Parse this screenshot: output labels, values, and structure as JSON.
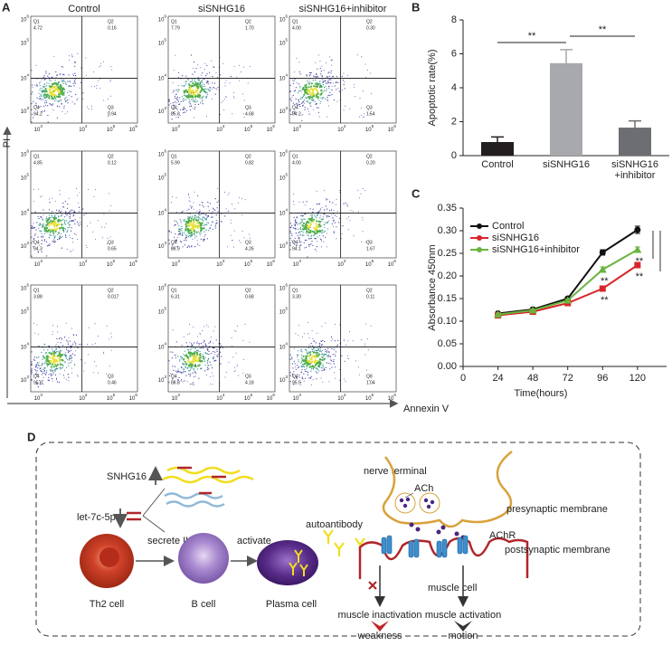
{
  "panel_labels": [
    "A",
    "B",
    "C",
    "D"
  ],
  "flow": {
    "columns": [
      "Control",
      "siSNHG16",
      "siSNHG16+inhibitor"
    ],
    "tick_base": "10",
    "tick_exponents": [
      "3",
      "4",
      "5",
      "6"
    ],
    "quadrant_names": [
      "Q1",
      "Q2",
      "Q3",
      "Q4"
    ],
    "plots": [
      [
        "4.72",
        "0.16",
        "0.94",
        "94.2"
      ],
      [
        "7.79",
        "1.70",
        "4.68",
        "85.8"
      ],
      [
        "4.00",
        "0.30",
        "1.54",
        "94.2"
      ],
      [
        "4.85",
        "0.12",
        "0.65",
        "94.3"
      ],
      [
        "5.99",
        "0.82",
        "4.26",
        "88.9"
      ],
      [
        "4.00",
        "0.20",
        "1.67",
        "94.1"
      ],
      [
        "3.88",
        "0.017",
        "0.46",
        "95.6"
      ],
      [
        "6.31",
        "0.68",
        "4.18",
        "88.8"
      ],
      [
        "3.30",
        "0.11",
        "1.04",
        "95.5"
      ]
    ],
    "y_label": "PI",
    "x_label": "Annexin V"
  },
  "chart_data": [
    {
      "type": "bar",
      "ylabel": "Apoptotic rate(%)",
      "categories": [
        "Control",
        "siSNHG16",
        "siSNHG16\n+inhibitor"
      ],
      "values": [
        0.8,
        5.45,
        1.65
      ],
      "errors": [
        0.3,
        0.8,
        0.4
      ],
      "colors": [
        "#231f20",
        "#a7a9ac",
        "#6d6e71"
      ],
      "ylim": [
        0,
        8
      ],
      "yticks": [
        0,
        2,
        4,
        6,
        8
      ],
      "annotations": [
        "**",
        "**"
      ]
    },
    {
      "type": "line",
      "xlabel": "Time(hours)",
      "ylabel": "Absorbance 450nm",
      "x": [
        24,
        48,
        72,
        96,
        120
      ],
      "xlim": [
        0,
        140
      ],
      "xticks": [
        0,
        24,
        48,
        72,
        96,
        120
      ],
      "ylim": [
        0,
        0.35
      ],
      "yticks": [
        {
          "value": 0,
          "label": "0.00"
        },
        {
          "value": 0.05,
          "label": "0.05"
        },
        {
          "value": 0.1,
          "label": "0.10"
        },
        {
          "value": 0.15,
          "label": "0.15"
        },
        {
          "value": 0.2,
          "label": "0.20"
        },
        {
          "value": 0.25,
          "label": "0.25"
        },
        {
          "value": 0.3,
          "label": "0.30"
        },
        {
          "value": 0.35,
          "label": "0.35"
        }
      ],
      "legend": "upper left",
      "series": [
        {
          "name": "Control",
          "color": "#111111",
          "marker": "circle",
          "values": [
            0.117,
            0.126,
            0.15,
            0.252,
            0.302
          ],
          "errors": [
            0.003,
            0.003,
            0.003,
            0.006,
            0.008
          ]
        },
        {
          "name": "siSNHG16",
          "color": "#d7262b",
          "marker": "square",
          "values": [
            0.113,
            0.121,
            0.14,
            0.172,
            0.224
          ],
          "errors": [
            0.003,
            0.003,
            0.003,
            0.006,
            0.006
          ]
        },
        {
          "name": "siSNHG16+inhibitor",
          "color": "#6ab33f",
          "marker": "triangle",
          "values": [
            0.115,
            0.124,
            0.146,
            0.214,
            0.258
          ],
          "errors": [
            0.003,
            0.003,
            0.003,
            0.006,
            0.006
          ]
        }
      ],
      "annotations": [
        "**",
        "**",
        "**",
        "**"
      ]
    }
  ],
  "diagram": {
    "snhg16": "SNHG16",
    "let7c": "let-7c-5p",
    "secrete": "secrete IL-10",
    "activate": "activate",
    "th2": "Th2 cell",
    "bcell": "B cell",
    "plasma": "Plasma cell",
    "autoantibody": "autoantibody",
    "nerve_terminal": "nerve terminal",
    "ach": "ACh",
    "presynaptic": "presynaptic membrane",
    "achr": "AChR",
    "postsynaptic": "postsynaptic membrane",
    "muscle_cell": "muscle cell",
    "inactivation": "muscle inactivation",
    "activation": "muscle activation",
    "weakness": "weakness",
    "motion": "motion"
  }
}
